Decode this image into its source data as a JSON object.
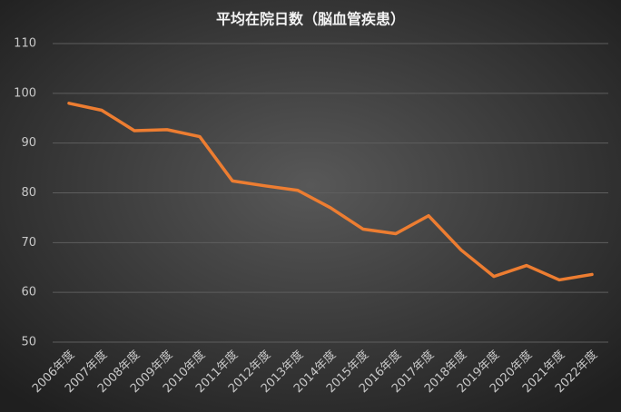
{
  "chart_data": {
    "type": "line",
    "title": "平均在院日数（脳血管疾患）",
    "categories": [
      "2006年度",
      "2007年度",
      "2008年度",
      "2009年度",
      "2010年度",
      "2011年度",
      "2012年度",
      "2013年度",
      "2014年度",
      "2015年度",
      "2016年度",
      "2017年度",
      "2018年度",
      "2019年度",
      "2020年度",
      "2021年度",
      "2022年度"
    ],
    "values": [
      98.0,
      96.6,
      92.5,
      92.7,
      91.3,
      82.4,
      81.4,
      80.5,
      77.0,
      72.7,
      71.8,
      75.4,
      68.5,
      63.2,
      65.4,
      62.5,
      63.6
    ],
    "color": "#ed7d31",
    "ylim": [
      50,
      110
    ],
    "yticks": [
      50,
      60,
      70,
      80,
      90,
      100,
      110
    ],
    "grid": true
  }
}
